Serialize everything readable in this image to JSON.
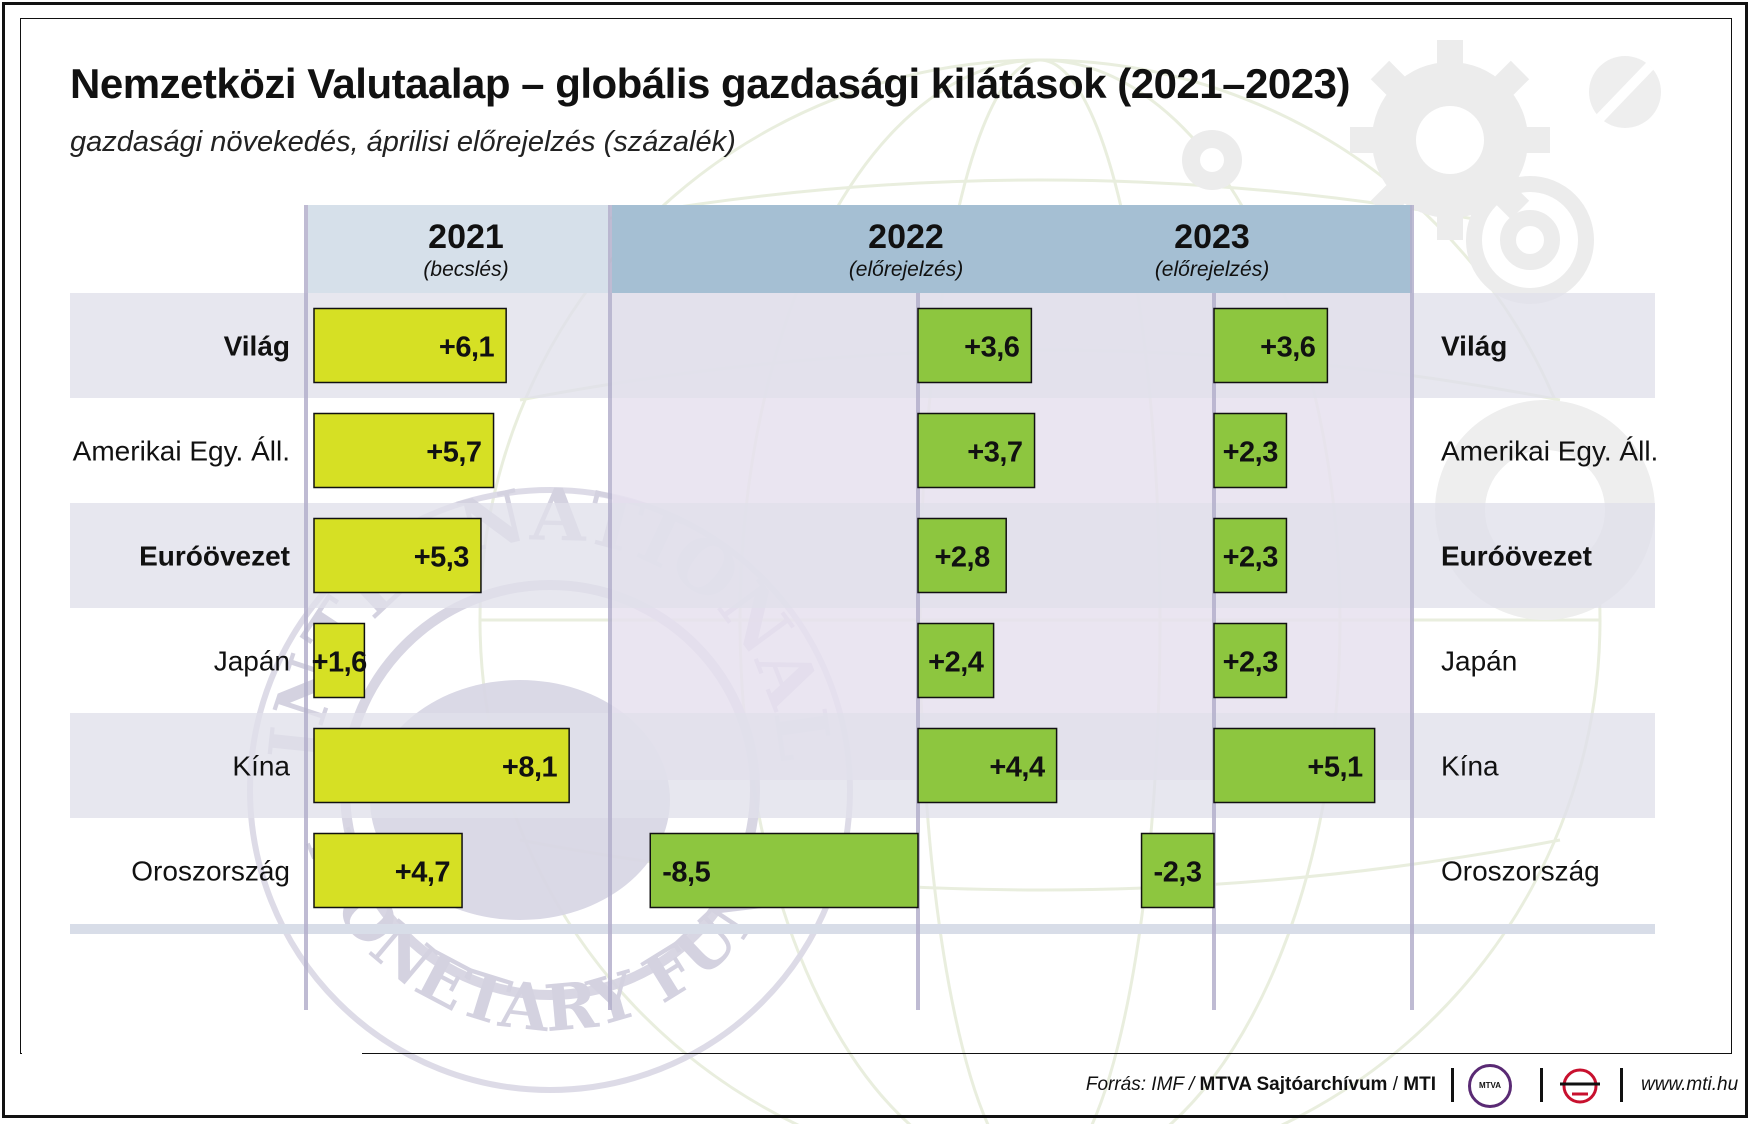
{
  "title": "Nemzetközi Valutaalap – globális gazdasági kilátások (2021–2023)",
  "subtitle": "gazdasági növekedés, áprilisi előrejelzés (százalék)",
  "footer": {
    "source_prefix": "Forrás: IMF /",
    "source_bold": "MTVA Sajtóarchívum",
    "source_sep": " / ",
    "source_agency": "MTI",
    "url": "www.mti.hu",
    "logo_mtva_text": "MTVA"
  },
  "background_text": {
    "seal_top": "INTERNATIONAL",
    "seal_bottom": "MONETARY FUND"
  },
  "colors": {
    "bar_2021": "#d6e024",
    "bar_forecast": "#8dc63f",
    "header_2021": "#d6e0ea",
    "header_forecast": "#a5bfd3",
    "row_stripe": "#e0e0ea",
    "forecast_area": "#e6e0ef",
    "axis_line": "#b4b0cc"
  },
  "chart_data": {
    "type": "bar",
    "orientation": "horizontal",
    "unit": "százalék",
    "categories": [
      "Világ",
      "Amerikai Egy. Áll.",
      "Euróövezet",
      "Japán",
      "Kína",
      "Oroszország"
    ],
    "bold_categories": [
      "Világ",
      "Euróövezet"
    ],
    "series": [
      {
        "name": "2021",
        "note": "(becslés)",
        "values": [
          6.1,
          5.7,
          5.3,
          1.6,
          8.1,
          4.7
        ],
        "labels": [
          "+6,1",
          "+5,7",
          "+5,3",
          "+1,6",
          "+8,1",
          "+4,7"
        ]
      },
      {
        "name": "2022",
        "note": "(előrejelzés)",
        "values": [
          3.6,
          3.7,
          2.8,
          2.4,
          4.4,
          -8.5
        ],
        "labels": [
          "+3,6",
          "+3,7",
          "+2,8",
          "+2,4",
          "+4,4",
          "-8,5"
        ]
      },
      {
        "name": "2023",
        "note": "(előrejelzés)",
        "values": [
          3.6,
          2.3,
          2.3,
          2.3,
          5.1,
          -2.3
        ],
        "labels": [
          "+3,6",
          "+2,3",
          "+2,3",
          "+2,3",
          "+5,1",
          "-2,3"
        ]
      }
    ],
    "legend": "none",
    "grid": false
  }
}
